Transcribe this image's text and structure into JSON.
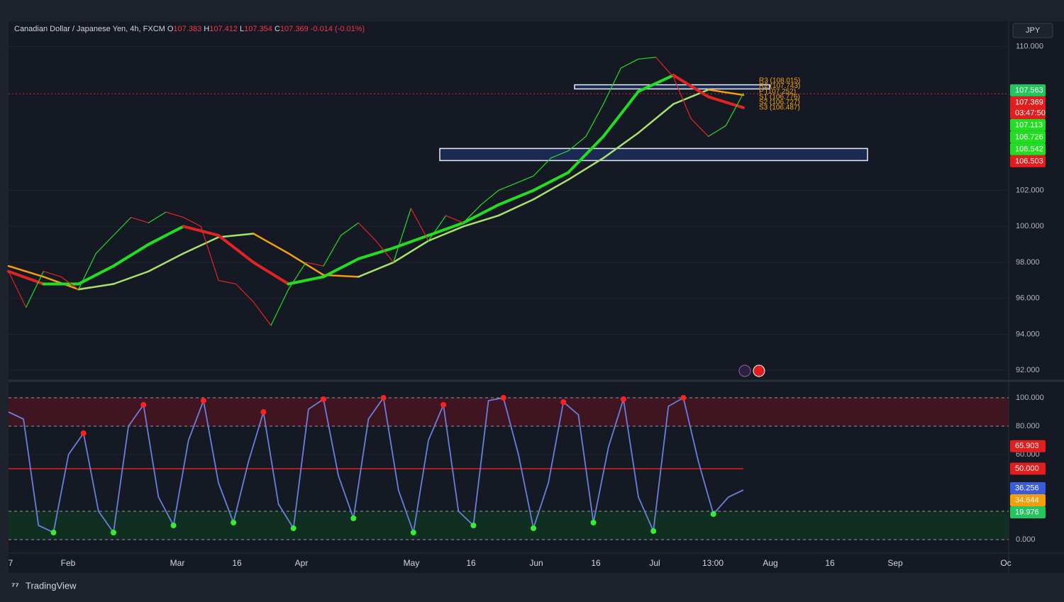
{
  "header": {
    "symbol": "Canadian Dollar / Japanese Yen, 4h, FXCM",
    "ohlc": [
      {
        "key": "O",
        "value": "107.383"
      },
      {
        "key": "H",
        "value": "107.412"
      },
      {
        "key": "L",
        "value": "107.354"
      },
      {
        "key": "C",
        "value": "107.369"
      }
    ],
    "change": "-0.014 (-0.01%)"
  },
  "currency": "JPY",
  "price_pane": {
    "ylim": [
      91.5,
      111.4
    ],
    "yticks": [
      {
        "value": 110,
        "label": "110.000"
      },
      {
        "value": 102,
        "label": "102.000"
      },
      {
        "value": 100,
        "label": "100.000"
      },
      {
        "value": 98,
        "label": "98.000"
      },
      {
        "value": 96,
        "label": "96.000"
      },
      {
        "value": 94,
        "label": "94.000"
      },
      {
        "value": 92,
        "label": "92.000"
      }
    ],
    "price": [
      97.5,
      95.5,
      97.5,
      97.2,
      96.5,
      98.5,
      99.5,
      100.5,
      100.2,
      100.8,
      100.5,
      100,
      97,
      96.8,
      95.8,
      94.5,
      96.5,
      98,
      97.8,
      99.5,
      100.2,
      99.2,
      98,
      101,
      99.2,
      100.6,
      100.2,
      101.2,
      102,
      102.4,
      102.8,
      103.8,
      104.2,
      105,
      106.8,
      108.8,
      109.3,
      109.4,
      108.3,
      106,
      105,
      105.6,
      107.4
    ],
    "slow_ma": [
      97.8,
      97.2,
      96.5,
      96.8,
      97.5,
      98.5,
      99.4,
      99.6,
      98.5,
      97.3,
      97.2,
      98,
      99.2,
      100,
      100.6,
      101.5,
      102.6,
      103.8,
      105.2,
      106.8,
      107.6,
      107.3
    ],
    "fast_ma": [
      97.5,
      96.8,
      96.8,
      97.8,
      99,
      100,
      99.5,
      98,
      96.8,
      97.2,
      98.2,
      98.8,
      99.5,
      100.2,
      101.2,
      102,
      103,
      105,
      107.5,
      108.4,
      107.2,
      106.6
    ],
    "up_color": "#22dd22",
    "down_color": "#e02424",
    "slow_up_color": "#a6e36a",
    "slow_down_color": "#f59e0b",
    "zones": [
      [
        103.66,
        104.33
      ],
      [
        107.64,
        107.87
      ]
    ],
    "pivots": [
      "R3 (108.015)",
      "R2 (107.743)",
      "P (107.252)",
      "S1 (106.776)",
      "S2 (106.727)",
      "S3 (106.487)"
    ],
    "badges": [
      {
        "value": 107.563,
        "color": "#22c55e"
      },
      {
        "value": 107.369,
        "color": "#e11d1d",
        "countdown": "03:47:50"
      },
      {
        "value": 107.113,
        "color": "#22dd22"
      },
      {
        "value": 106.726,
        "color": "#22dd22"
      },
      {
        "value": 106.542,
        "color": "#22dd22"
      },
      {
        "value": 106.503,
        "color": "#e11d1d"
      }
    ]
  },
  "osc_pane": {
    "ylim": [
      -9.5,
      110.5
    ],
    "yticks": [
      {
        "value": 100,
        "label": "100.000"
      },
      {
        "value": 80,
        "label": "80.000"
      },
      {
        "value": 60,
        "label": "60.000"
      },
      {
        "value": 0,
        "label": "0.000"
      }
    ],
    "upper_band": [
      80,
      100
    ],
    "lower_band": [
      0,
      20
    ],
    "midline": 50,
    "color": "#6a7fdb",
    "values": [
      90,
      85,
      10,
      5,
      60,
      75,
      20,
      5,
      80,
      95,
      30,
      10,
      70,
      98,
      40,
      12,
      55,
      90,
      25,
      8,
      92,
      99,
      45,
      15,
      85,
      100,
      35,
      5,
      70,
      95,
      20,
      10,
      98,
      100,
      60,
      8,
      40,
      97,
      88,
      12,
      65,
      99,
      30,
      6,
      94,
      100,
      55,
      18,
      30,
      35
    ],
    "badges": [
      {
        "value": 65.903,
        "color": "#e11d1d"
      },
      {
        "value": 50,
        "label": "50.000",
        "color": "#e11d1d"
      },
      {
        "value": 36.256,
        "color": "#3b5bdb"
      },
      {
        "value": 34.644,
        "color": "#f59e0b"
      },
      {
        "value": 19.976,
        "color": "#22c55e"
      }
    ]
  },
  "time_labels": [
    "7",
    "Feb",
    "Mar",
    "16",
    "Apr",
    "May",
    "16",
    "Jun",
    "16",
    "Jul",
    "13:00",
    "Aug",
    "16",
    "Sep",
    "Oc"
  ],
  "footer": "TradingView"
}
